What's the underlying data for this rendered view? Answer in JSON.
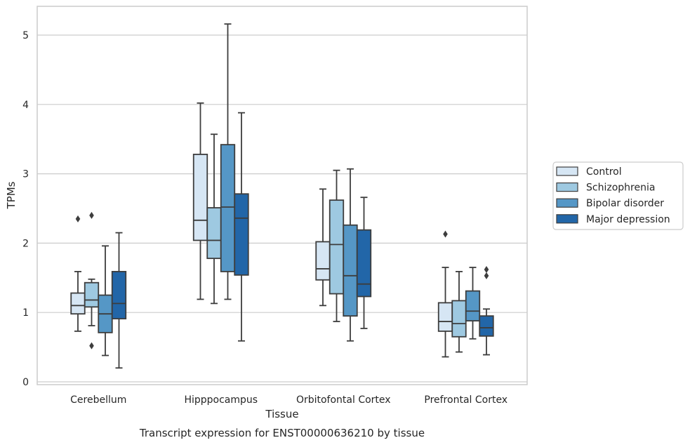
{
  "chart_data": {
    "type": "box",
    "title": "",
    "caption": "Transcript expression for ENST00000636210 by tissue",
    "xlabel": "Tissue",
    "ylabel": "TPMs",
    "ylim": [
      -0.05,
      5.42
    ],
    "yticks": [
      0,
      1,
      2,
      3,
      4,
      5
    ],
    "grid": "horizontal",
    "legend_position": "right",
    "categories": [
      "Cerebellum",
      "Hipppocampus",
      "Orbitofontal Cortex",
      "Prefrontal Cortex"
    ],
    "series": [
      {
        "name": "Control",
        "color": "#d6e6f4",
        "boxes": [
          {
            "whislo": 0.73,
            "q1": 0.98,
            "med": 1.1,
            "q3": 1.28,
            "whishi": 1.59,
            "fliers": [
              2.35
            ]
          },
          {
            "whislo": 1.19,
            "q1": 2.04,
            "med": 2.33,
            "q3": 3.28,
            "whishi": 4.02,
            "fliers": []
          },
          {
            "whislo": 1.1,
            "q1": 1.47,
            "med": 1.63,
            "q3": 2.02,
            "whishi": 2.78,
            "fliers": []
          },
          {
            "whislo": 0.36,
            "q1": 0.73,
            "med": 0.87,
            "q3": 1.14,
            "whishi": 1.65,
            "fliers": [
              2.13
            ]
          }
        ]
      },
      {
        "name": "Schizophrenia",
        "color": "#9ec9e1",
        "boxes": [
          {
            "whislo": 0.81,
            "q1": 1.08,
            "med": 1.18,
            "q3": 1.43,
            "whishi": 1.48,
            "fliers": [
              2.4,
              0.52
            ]
          },
          {
            "whislo": 1.13,
            "q1": 1.78,
            "med": 2.04,
            "q3": 2.51,
            "whishi": 3.57,
            "fliers": []
          },
          {
            "whislo": 0.87,
            "q1": 1.27,
            "med": 1.98,
            "q3": 2.62,
            "whishi": 3.05,
            "fliers": []
          },
          {
            "whislo": 0.43,
            "q1": 0.65,
            "med": 0.84,
            "q3": 1.17,
            "whishi": 1.59,
            "fliers": []
          }
        ]
      },
      {
        "name": "Bipolar disorder",
        "color": "#5597c6",
        "boxes": [
          {
            "whislo": 0.38,
            "q1": 0.71,
            "med": 0.98,
            "q3": 1.25,
            "whishi": 1.96,
            "fliers": []
          },
          {
            "whislo": 1.19,
            "q1": 1.59,
            "med": 2.52,
            "q3": 3.42,
            "whishi": 5.16,
            "fliers": []
          },
          {
            "whislo": 0.59,
            "q1": 0.95,
            "med": 1.53,
            "q3": 2.26,
            "whishi": 3.07,
            "fliers": []
          },
          {
            "whislo": 0.62,
            "q1": 0.88,
            "med": 1.02,
            "q3": 1.31,
            "whishi": 1.65,
            "fliers": []
          }
        ]
      },
      {
        "name": "Major depression",
        "color": "#2266a8",
        "boxes": [
          {
            "whislo": 0.2,
            "q1": 0.91,
            "med": 1.13,
            "q3": 1.59,
            "whishi": 2.15,
            "fliers": []
          },
          {
            "whislo": 0.59,
            "q1": 1.54,
            "med": 2.36,
            "q3": 2.71,
            "whishi": 3.88,
            "fliers": []
          },
          {
            "whislo": 0.77,
            "q1": 1.23,
            "med": 1.41,
            "q3": 2.19,
            "whishi": 2.66,
            "fliers": []
          },
          {
            "whislo": 0.39,
            "q1": 0.66,
            "med": 0.78,
            "q3": 0.95,
            "whishi": 1.05,
            "fliers": [
              1.62,
              1.53
            ]
          }
        ]
      }
    ]
  }
}
